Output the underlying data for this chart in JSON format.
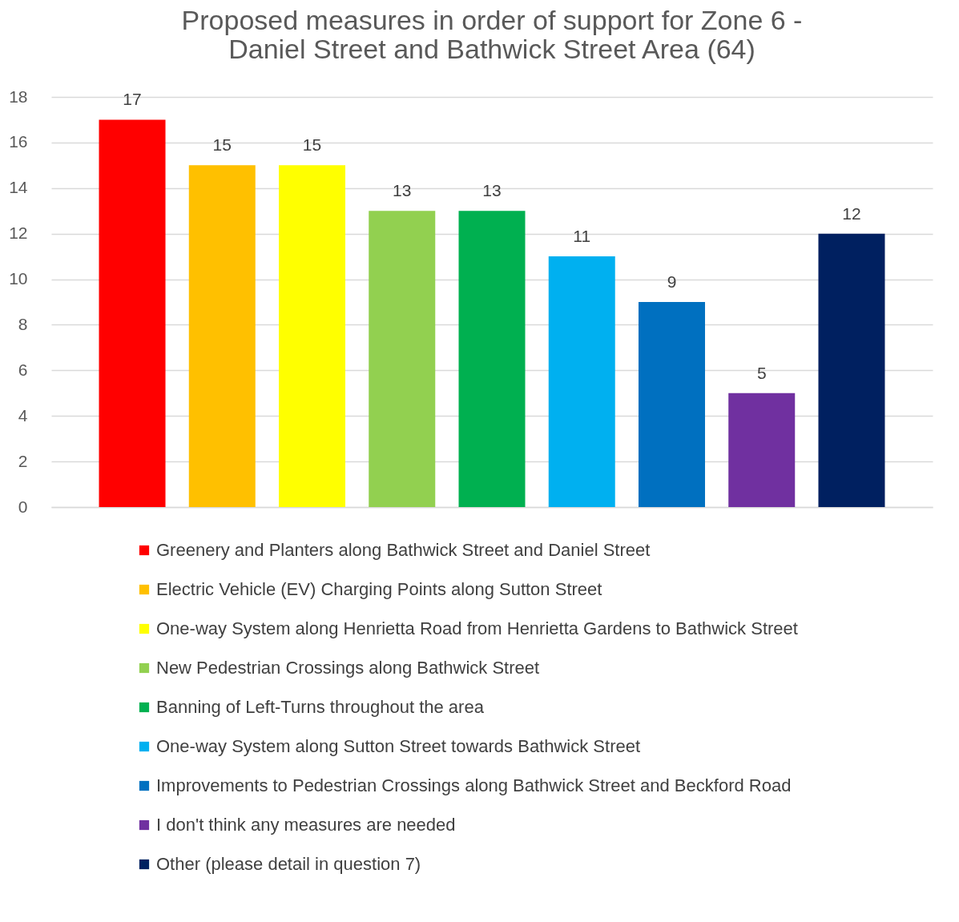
{
  "chart_data": {
    "type": "bar",
    "title": "Proposed measures in order of support for Zone 6 - Daniel Street and Bathwick Street Area (64)",
    "categories": [
      null,
      null,
      null,
      null,
      null,
      null,
      null,
      null,
      null
    ],
    "series": [
      {
        "name": "Greenery and Planters along Bathwick Street and Daniel Street",
        "color": "#ff0000",
        "values": [
          17,
          null,
          null,
          null,
          null,
          null,
          null,
          null,
          null
        ]
      },
      {
        "name": "Electric Vehicle (EV) Charging Points along Sutton Street",
        "color": "#ffc000",
        "values": [
          null,
          15,
          null,
          null,
          null,
          null,
          null,
          null,
          null
        ]
      },
      {
        "name": "One-way System along Henrietta Road from Henrietta Gardens to Bathwick Street",
        "color": "#ffff00",
        "values": [
          null,
          null,
          15,
          null,
          null,
          null,
          null,
          null,
          null
        ]
      },
      {
        "name": "New Pedestrian Crossings along Bathwick Street",
        "color": "#92d050",
        "values": [
          null,
          null,
          null,
          13,
          null,
          null,
          null,
          null,
          null
        ]
      },
      {
        "name": "Banning of Left-Turns throughout the area",
        "color": "#00b050",
        "values": [
          null,
          null,
          null,
          null,
          13,
          null,
          null,
          null,
          null
        ]
      },
      {
        "name": "One-way System along Sutton Street towards Bathwick Street",
        "color": "#00b0f0",
        "values": [
          null,
          null,
          null,
          null,
          null,
          11,
          null,
          null,
          null
        ]
      },
      {
        "name": "Improvements to Pedestrian Crossings along Bathwick Street and Beckford Road",
        "color": "#0070c0",
        "values": [
          null,
          null,
          null,
          null,
          null,
          null,
          9,
          null,
          null
        ]
      },
      {
        "name": "I don't think any measures are needed",
        "color": "#7030a0",
        "values": [
          null,
          null,
          null,
          null,
          null,
          null,
          null,
          5,
          null
        ]
      },
      {
        "name": "Other (please detail in question 7)",
        "color": "#002060",
        "values": [
          null,
          null,
          null,
          null,
          null,
          null,
          null,
          null,
          12
        ]
      }
    ],
    "ylim": [
      0,
      18
    ],
    "yticks": [
      0,
      2,
      4,
      6,
      8,
      10,
      12,
      14,
      16,
      18
    ],
    "grid": "y",
    "legend": "bottom",
    "data_labels": true,
    "tick_labels": "y"
  }
}
